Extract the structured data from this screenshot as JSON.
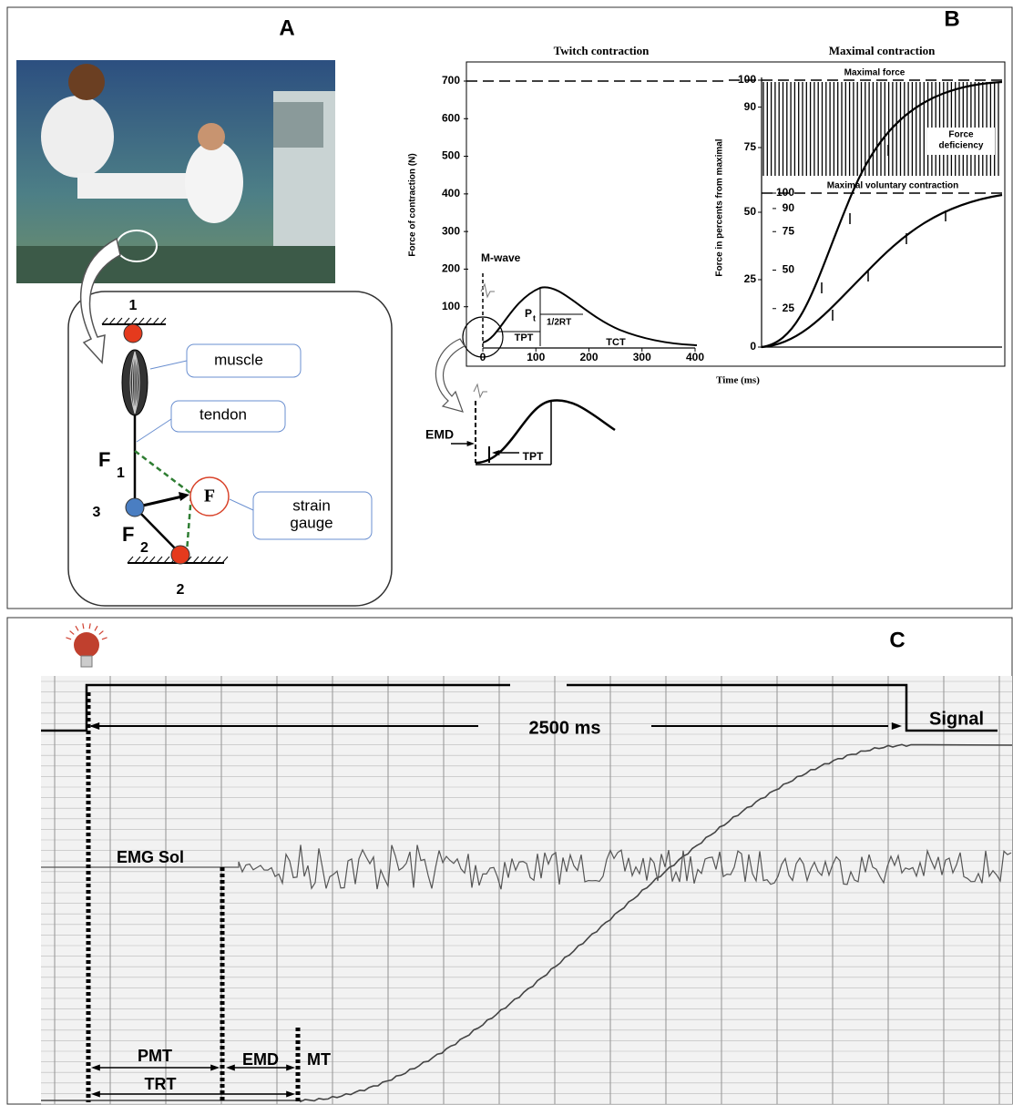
{
  "panel_a": {
    "label": "A",
    "node_labels": [
      "1",
      "3",
      "2"
    ],
    "forces": [
      {
        "symbol": "F",
        "subscript": "1"
      },
      {
        "symbol": "F",
        "subscript": "2"
      }
    ],
    "gauge_symbol": "F",
    "muscle": "muscle",
    "tendon": "tendon",
    "strain_gauge": [
      "strain",
      "gauge"
    ]
  },
  "panel_b": {
    "label": "B",
    "x_label": "Time (ms)",
    "twitch": {
      "title": "Twitch contraction",
      "y_label": "Force of contraction (N)",
      "ylim": [
        0,
        700
      ],
      "yticks": [
        100,
        200,
        300,
        400,
        500,
        600,
        700
      ],
      "xlim": [
        0,
        400
      ],
      "xticks": [
        0,
        100,
        200,
        300,
        400
      ],
      "m_wave": "M-wave",
      "pt": {
        "symbol": "P",
        "subscript": "t"
      },
      "tpt": "TPT",
      "half_rt": "1/2RT",
      "tct": "TCT",
      "inset_emd": "EMD",
      "inset_tpt": "TPT"
    },
    "maximal": {
      "title": "Maximal contraction",
      "y_label": "Force in percents from maximal",
      "upper_ylim": [
        75,
        100
      ],
      "upper_yticks": [
        75,
        90,
        100
      ],
      "lower_ylim": [
        0,
        50
      ],
      "lower_yticks": [
        0,
        25,
        50
      ],
      "inner_ylim": [
        0,
        100
      ],
      "inner_yticks": [
        25,
        50,
        75,
        90,
        100
      ],
      "maximal_force": "Maximal force",
      "force_deficiency": [
        "Force",
        "deficiency"
      ],
      "mvc": "Maximal voluntary contraction"
    }
  },
  "panel_c": {
    "label": "C",
    "duration": "2500 ms",
    "signal": "Signal",
    "emg": "EMG Sol",
    "pmt": "PMT",
    "emd": "EMD",
    "mt": "MT",
    "trt": "TRT"
  }
}
